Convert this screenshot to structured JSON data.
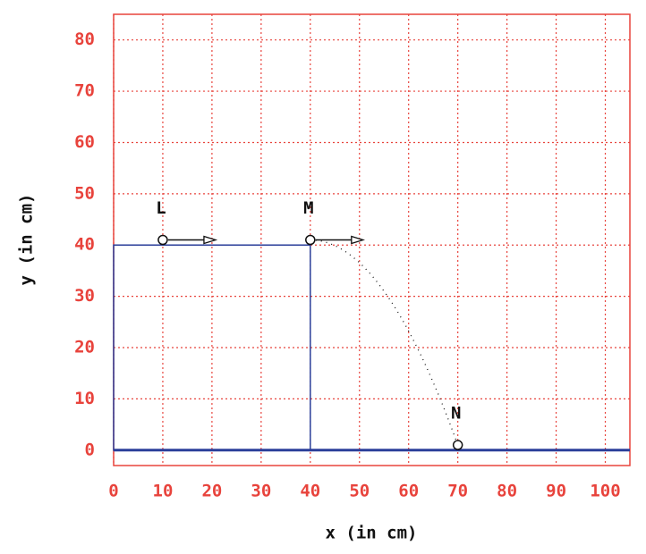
{
  "chart_data": {
    "type": "scatter",
    "xlabel": "x (in cm)",
    "ylabel": "y (in cm)",
    "xlim": [
      0,
      105
    ],
    "ylim": [
      -3,
      85
    ],
    "xticks": [
      0,
      10,
      20,
      30,
      40,
      50,
      60,
      70,
      80,
      90,
      100
    ],
    "yticks": [
      0,
      10,
      20,
      30,
      40,
      50,
      60,
      70,
      80
    ],
    "grid": true,
    "grid_color": "#e8433c",
    "surface_color": "#2b3f9a",
    "points": {
      "labels": [
        "L",
        "M",
        "N"
      ],
      "x": [
        10,
        40,
        70
      ],
      "y": [
        41,
        41,
        1
      ]
    },
    "table": {
      "x": [
        0,
        40
      ],
      "y": [
        0,
        40
      ]
    }
  }
}
